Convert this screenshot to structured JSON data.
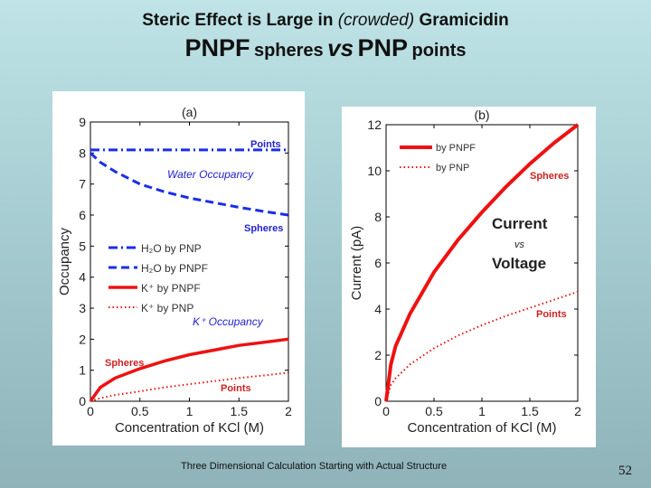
{
  "slide": {
    "title_line1_a": "Steric Effect is Large in",
    "title_line1_b": "(crowded)",
    "title_line1_c": "Gramicidin",
    "title_line2_a": "PNPF",
    "title_line2_b": "spheres",
    "title_line2_c": "vs",
    "title_line2_d": "PNP",
    "title_line2_e": "points",
    "footer": "Three Dimensional Calculation Starting with Actual Structure",
    "page_number": "52"
  },
  "chart_data": [
    {
      "type": "line",
      "title": "(a)",
      "xlabel": "Concentration of KCl (M)",
      "ylabel": "Occupancy",
      "xlim": [
        0,
        2
      ],
      "ylim": [
        0,
        9
      ],
      "x_ticks": [
        "0",
        "0.5",
        "1",
        "1.5",
        "2"
      ],
      "y_ticks": [
        "0",
        "1",
        "2",
        "3",
        "4",
        "5",
        "6",
        "7",
        "8",
        "9"
      ],
      "legend_position": "left",
      "colors": {
        "h2o": "#1a2ee8",
        "k": "#ee1111"
      },
      "series": [
        {
          "name": "H2O by PNP",
          "style": "dashdot",
          "x": [
            0,
            0.25,
            0.5,
            0.75,
            1,
            1.25,
            1.5,
            1.75,
            2
          ],
          "values": [
            8.1,
            8.1,
            8.1,
            8.1,
            8.1,
            8.1,
            8.1,
            8.1,
            8.1
          ]
        },
        {
          "name": "H2O by PNPF",
          "style": "dashed",
          "x": [
            0,
            0.1,
            0.25,
            0.5,
            0.75,
            1,
            1.25,
            1.5,
            1.75,
            2
          ],
          "values": [
            8.0,
            7.7,
            7.4,
            7.0,
            6.75,
            6.55,
            6.4,
            6.25,
            6.12,
            6.0
          ]
        },
        {
          "name": "K+ by PNPF",
          "style": "solid",
          "x": [
            0,
            0.1,
            0.25,
            0.5,
            0.75,
            1,
            1.25,
            1.5,
            1.75,
            2
          ],
          "values": [
            0,
            0.45,
            0.75,
            1.05,
            1.3,
            1.5,
            1.65,
            1.8,
            1.9,
            2.0
          ]
        },
        {
          "name": "K+ by PNP",
          "style": "dotted",
          "x": [
            0,
            0.1,
            0.25,
            0.5,
            0.75,
            1,
            1.25,
            1.5,
            1.75,
            2
          ],
          "values": [
            0,
            0.1,
            0.2,
            0.32,
            0.45,
            0.55,
            0.65,
            0.75,
            0.83,
            0.92
          ]
        }
      ],
      "annotations": {
        "points_top": "Points",
        "water_occupancy": "Water Occupancy",
        "spheres_water": "Spheres",
        "k_occupancy": "K⁺ Occupancy",
        "spheres_k": "Spheres",
        "points_k": "Points"
      }
    },
    {
      "type": "line",
      "title": "(b)",
      "xlabel": "Concentration of KCl (M)",
      "ylabel": "Current (pA)",
      "xlim": [
        0,
        2
      ],
      "ylim": [
        0,
        12
      ],
      "x_ticks": [
        "0",
        "0.5",
        "1",
        "1.5",
        "2"
      ],
      "y_ticks": [
        "0",
        "2",
        "4",
        "6",
        "8",
        "10",
        "12"
      ],
      "legend_position": "top-left",
      "colors": {
        "pnpf": "#ee1111",
        "pnp": "#ee1111"
      },
      "series": [
        {
          "name": "by PNPF",
          "style": "solid",
          "x": [
            0,
            0.05,
            0.1,
            0.25,
            0.5,
            0.75,
            1,
            1.25,
            1.5,
            1.75,
            2
          ],
          "values": [
            0,
            1.6,
            2.4,
            3.8,
            5.6,
            7.0,
            8.2,
            9.3,
            10.3,
            11.2,
            12.0
          ]
        },
        {
          "name": "by PNP",
          "style": "dotted",
          "x": [
            0,
            0.05,
            0.1,
            0.25,
            0.5,
            0.75,
            1,
            1.25,
            1.5,
            1.75,
            2
          ],
          "values": [
            0,
            0.7,
            1.0,
            1.6,
            2.3,
            2.85,
            3.3,
            3.7,
            4.05,
            4.4,
            4.75
          ]
        }
      ],
      "annotations": {
        "spheres": "Spheres",
        "current": "Current",
        "vs": "vs",
        "voltage": "Voltage",
        "points": "Points"
      }
    }
  ]
}
